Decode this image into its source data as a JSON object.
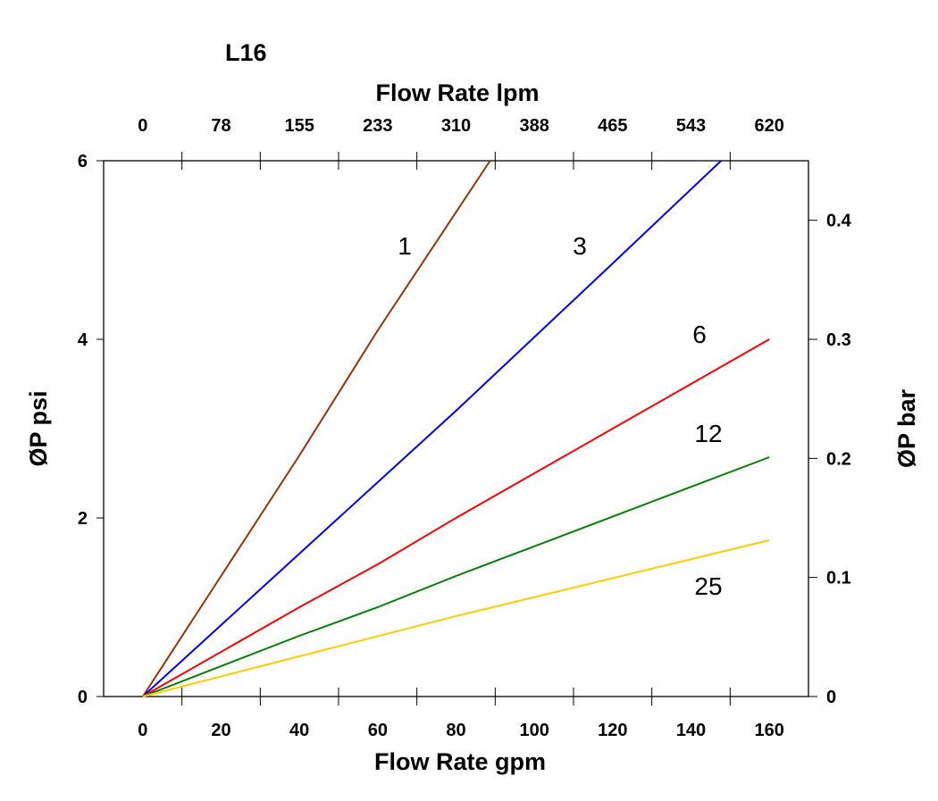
{
  "chart_data": {
    "type": "line",
    "title": "L16",
    "xlabel": "Flow Rate gpm",
    "x2label": "Flow Rate lpm",
    "ylabel": "ØP psi",
    "y2label": "ØP bar",
    "xlim": [
      -10,
      170
    ],
    "ylim": [
      0,
      6
    ],
    "y2lim": [
      0,
      0.45
    ],
    "grid": false,
    "x_ticks": [
      0,
      20,
      40,
      60,
      80,
      100,
      120,
      140,
      160
    ],
    "x2_tick_labels": [
      "0",
      "78",
      "155",
      "233",
      "310",
      "388",
      "465",
      "543",
      "620"
    ],
    "y_ticks": [
      0,
      2,
      4,
      6
    ],
    "y2_ticks": [
      0,
      0.1,
      0.2,
      0.3,
      0.4
    ],
    "series": [
      {
        "name": "1",
        "color": "#993300",
        "x": [
          0,
          20,
          40,
          60,
          88.7
        ],
        "y": [
          0,
          1.35,
          2.7,
          4.1,
          6
        ]
      },
      {
        "name": "3",
        "color": "#0000ff",
        "x": [
          0,
          40,
          80,
          120,
          147.7
        ],
        "y": [
          0,
          1.6,
          3.2,
          4.85,
          6
        ]
      },
      {
        "name": "6",
        "color": "#ff0000",
        "x": [
          0,
          40,
          60,
          80,
          100,
          120,
          160
        ],
        "y": [
          0,
          1.0,
          1.48,
          2.0,
          2.5,
          3.0,
          4.0
        ]
      },
      {
        "name": "12",
        "color": "#008000",
        "x": [
          0,
          40,
          60,
          80,
          160
        ],
        "y": [
          0,
          0.68,
          1.0,
          1.35,
          2.68
        ]
      },
      {
        "name": "25",
        "color": "#ffcc00",
        "x": [
          0,
          40,
          80,
          160
        ],
        "y": [
          0,
          0.45,
          0.9,
          1.75
        ]
      }
    ]
  }
}
